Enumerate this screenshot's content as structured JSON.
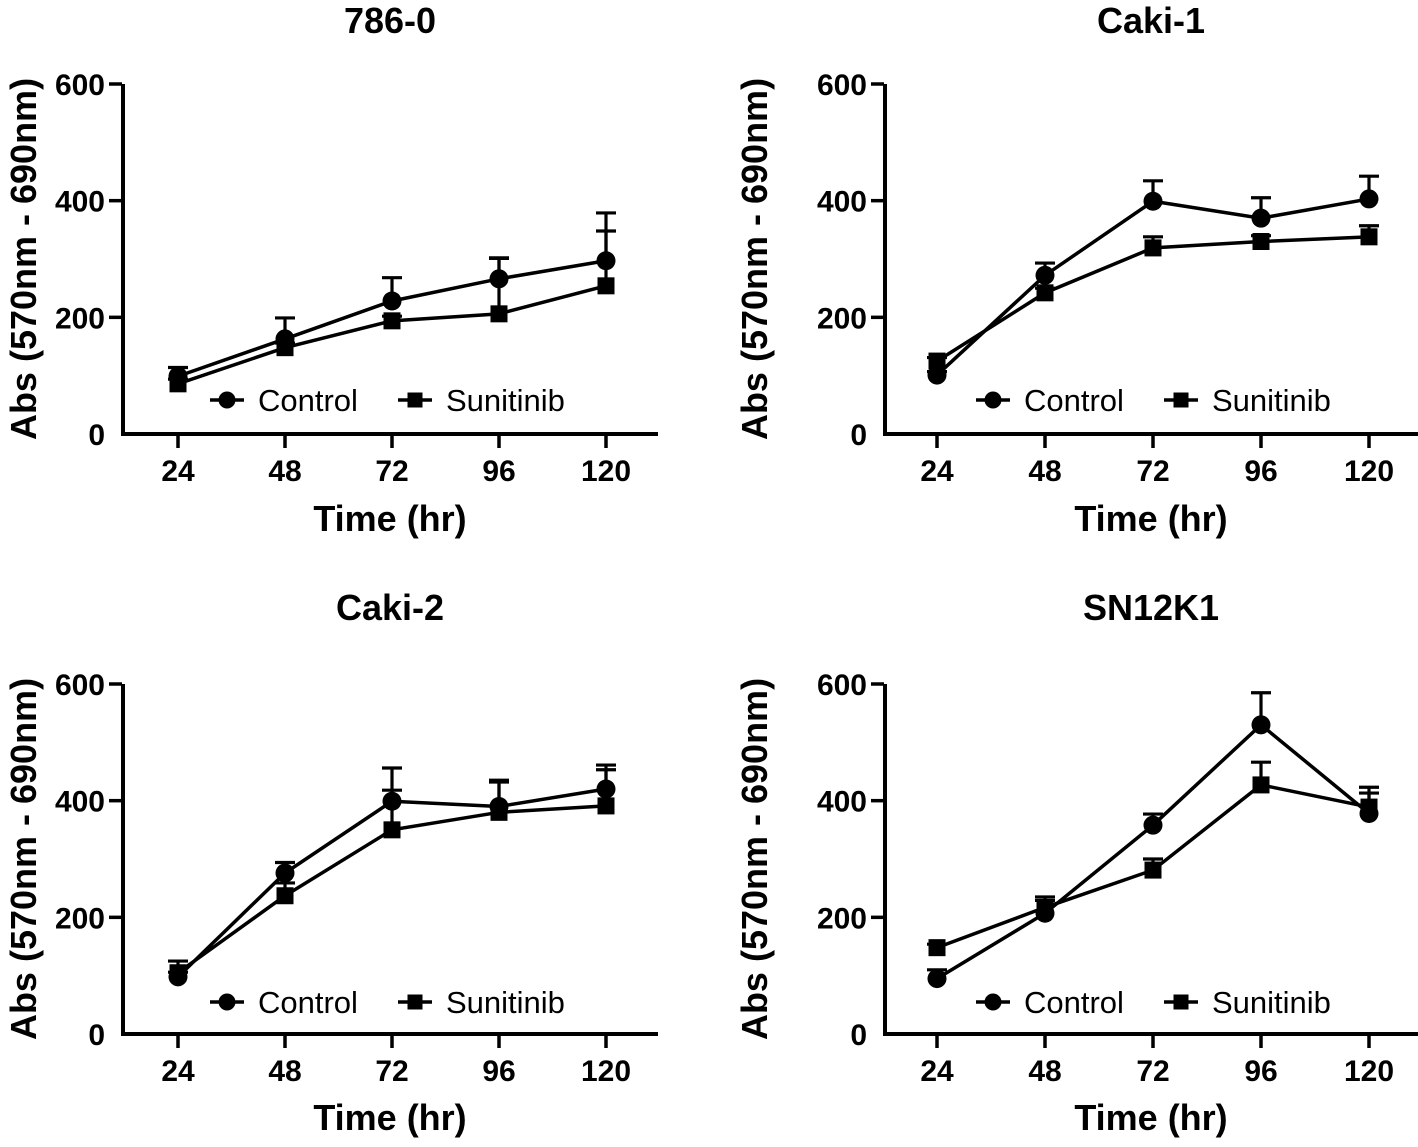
{
  "colors": {
    "ink": "#000000",
    "background": "#ffffff"
  },
  "chart_data": [
    {
      "type": "line",
      "title": "786-0",
      "xlabel": "Time (hr)",
      "ylabel": "Abs (570nm - 690nm)",
      "x": [
        24,
        48,
        72,
        96,
        120
      ],
      "xticklabels": [
        "24",
        "48",
        "72",
        "96",
        "120"
      ],
      "ylim": [
        0,
        600
      ],
      "yticks": [
        0,
        200,
        400,
        600
      ],
      "grid": false,
      "legend_position": "inside-bottom",
      "error_bars": "upper-only",
      "series": [
        {
          "name": "Control",
          "marker": "circle",
          "values": [
            99,
            163,
            228,
            266,
            297
          ],
          "errors_up": [
            15,
            36,
            40,
            36,
            82
          ]
        },
        {
          "name": "Sunitinib",
          "marker": "square",
          "values": [
            86,
            148,
            194,
            206,
            254
          ],
          "errors_up": [
            8,
            8,
            8,
            95,
            94
          ]
        }
      ]
    },
    {
      "type": "line",
      "title": "Caki-1",
      "xlabel": "Time (hr)",
      "ylabel": "Abs (570nm - 690nm)",
      "x": [
        24,
        48,
        72,
        96,
        120
      ],
      "xticklabels": [
        "24",
        "48",
        "72",
        "96",
        "120"
      ],
      "ylim": [
        0,
        600
      ],
      "yticks": [
        0,
        200,
        400,
        600
      ],
      "grid": false,
      "legend_position": "inside-bottom",
      "error_bars": "upper-only",
      "series": [
        {
          "name": "Control",
          "marker": "circle",
          "values": [
            101,
            272,
            399,
            370,
            403
          ],
          "errors_up": [
            6,
            21,
            35,
            35,
            39
          ]
        },
        {
          "name": "Sunitinib",
          "marker": "square",
          "values": [
            125,
            242,
            319,
            330,
            338
          ],
          "errors_up": [
            6,
            8,
            19,
            10,
            19
          ]
        }
      ]
    },
    {
      "type": "line",
      "title": "Caki-2",
      "xlabel": "Time (hr)",
      "ylabel": "Abs (570nm - 690nm)",
      "x": [
        24,
        48,
        72,
        96,
        120
      ],
      "xticklabels": [
        "24",
        "48",
        "72",
        "96",
        "120"
      ],
      "ylim": [
        0,
        600
      ],
      "yticks": [
        0,
        200,
        400,
        600
      ],
      "grid": false,
      "legend_position": "inside-bottom",
      "error_bars": "upper-only",
      "series": [
        {
          "name": "Control",
          "marker": "circle",
          "values": [
            98,
            276,
            399,
            390,
            420
          ],
          "errors_up": [
            8,
            18,
            57,
            45,
            33
          ]
        },
        {
          "name": "Sunitinib",
          "marker": "square",
          "values": [
            105,
            237,
            350,
            380,
            391
          ],
          "errors_up": [
            20,
            22,
            68,
            52,
            70
          ]
        }
      ]
    },
    {
      "type": "line",
      "title": "SN12K1",
      "xlabel": "Time (hr)",
      "ylabel": "Abs (570nm - 690nm)",
      "x": [
        24,
        48,
        72,
        96,
        120
      ],
      "xticklabels": [
        "24",
        "48",
        "72",
        "96",
        "120"
      ],
      "ylim": [
        0,
        600
      ],
      "yticks": [
        0,
        200,
        400,
        600
      ],
      "grid": false,
      "legend_position": "inside-bottom",
      "error_bars": "upper-only",
      "series": [
        {
          "name": "Control",
          "marker": "circle",
          "values": [
            95,
            207,
            358,
            530,
            378
          ],
          "errors_up": [
            15,
            22,
            19,
            55,
            45
          ]
        },
        {
          "name": "Sunitinib",
          "marker": "square",
          "values": [
            148,
            217,
            281,
            427,
            389
          ],
          "errors_up": [
            6,
            18,
            19,
            39,
            24
          ]
        }
      ]
    }
  ]
}
